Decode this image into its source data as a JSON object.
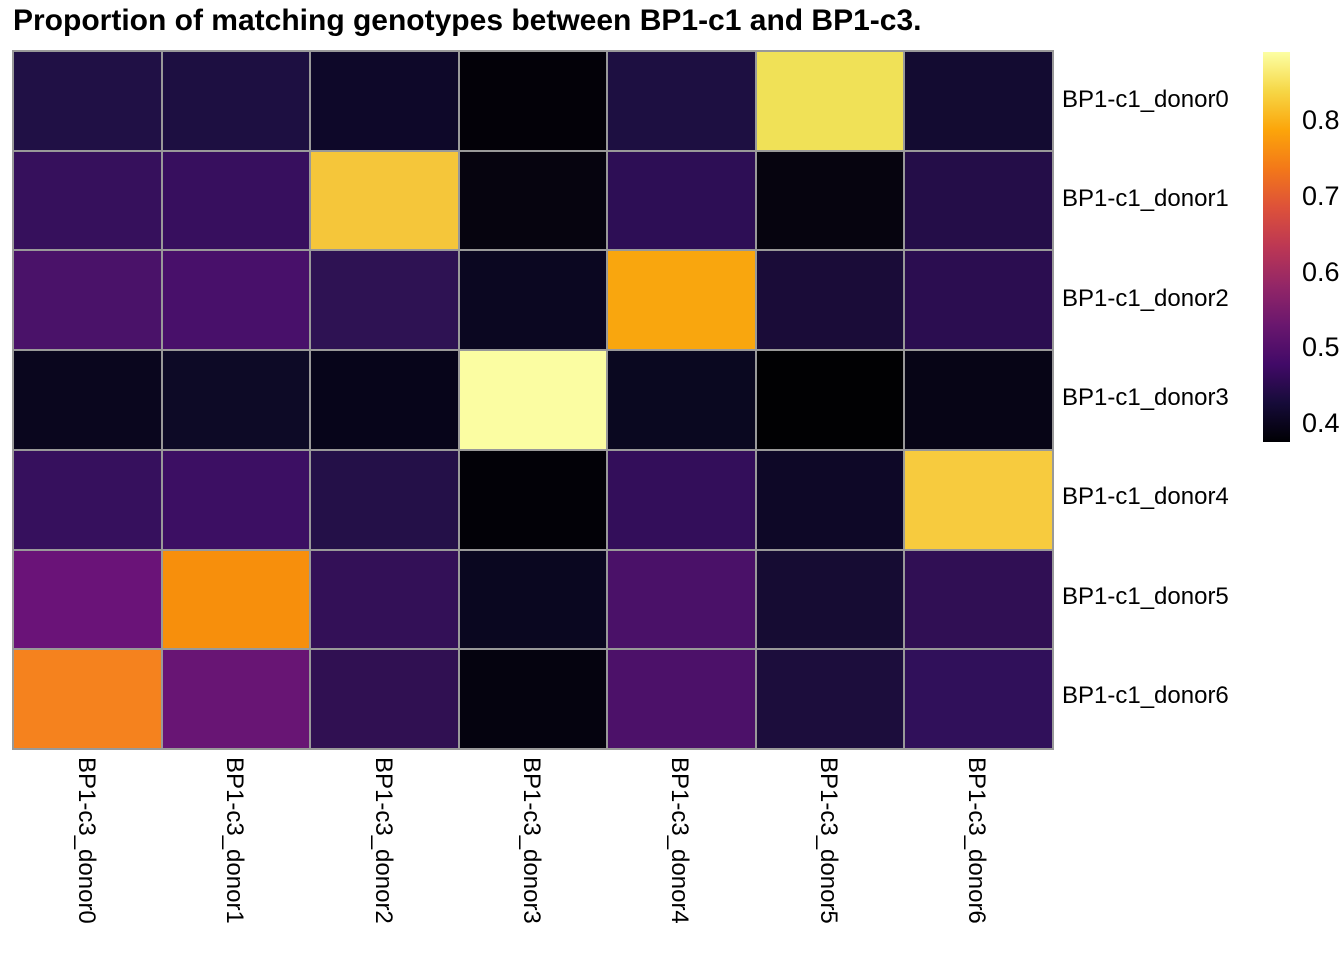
{
  "chart_data": {
    "type": "heatmap",
    "title": "Proportion of matching genotypes between BP1-c1 and BP1-c3.",
    "row_labels": [
      "BP1-c1_donor0",
      "BP1-c1_donor1",
      "BP1-c1_donor2",
      "BP1-c1_donor3",
      "BP1-c1_donor4",
      "BP1-c1_donor5",
      "BP1-c1_donor6"
    ],
    "col_labels": [
      "BP1-c3_donor0",
      "BP1-c3_donor1",
      "BP1-c3_donor2",
      "BP1-c3_donor3",
      "BP1-c3_donor4",
      "BP1-c3_donor5",
      "BP1-c3_donor6"
    ],
    "colormap": "inferno",
    "value_range": [
      0.375,
      0.89
    ],
    "grid_color": "#999999",
    "values": [
      [
        0.44,
        0.44,
        0.41,
        0.38,
        0.44,
        0.84,
        0.42
      ],
      [
        0.46,
        0.46,
        0.81,
        0.39,
        0.45,
        0.39,
        0.44
      ],
      [
        0.49,
        0.48,
        0.45,
        0.4,
        0.79,
        0.43,
        0.45
      ],
      [
        0.4,
        0.41,
        0.39,
        0.89,
        0.4,
        0.38,
        0.39
      ],
      [
        0.46,
        0.47,
        0.44,
        0.38,
        0.46,
        0.41,
        0.82
      ],
      [
        0.53,
        0.76,
        0.46,
        0.4,
        0.49,
        0.42,
        0.45
      ],
      [
        0.74,
        0.52,
        0.45,
        0.39,
        0.49,
        0.43,
        0.46
      ]
    ],
    "cell_colors": [
      [
        "#201045",
        "#1d0f41",
        "#0e0829",
        "#030108",
        "#1d0f41",
        "#f0e157",
        "#130b31"
      ],
      [
        "#36105c",
        "#370f5e",
        "#f5c63a",
        "#06040f",
        "#2d0e55",
        "#06040f",
        "#240d48"
      ],
      [
        "#4a1269",
        "#48106a",
        "#2e1253",
        "#0b0721",
        "#f9a60e",
        "#1a0c38",
        "#2b0d50"
      ],
      [
        "#0a061e",
        "#0d0a26",
        "#07051a",
        "#fbfda2",
        "#0a0820",
        "#010103",
        "#070516"
      ],
      [
        "#36105d",
        "#3c0f63",
        "#241048",
        "#020107",
        "#330e5a",
        "#0e0827",
        "#f7cb3e"
      ],
      [
        "#6a1378",
        "#f78f0c",
        "#331057",
        "#0a0720",
        "#4a1168",
        "#160c33",
        "#300f54"
      ],
      [
        "#f5821e",
        "#681574",
        "#301052",
        "#05030f",
        "#4c1169",
        "#1c0d3c",
        "#30105a"
      ]
    ],
    "colorbar": {
      "tick_labels": [
        "0.8",
        "0.7",
        "0.6",
        "0.5",
        "0.4"
      ],
      "tick_values": [
        0.8,
        0.7,
        0.6,
        0.5,
        0.4
      ],
      "gradient_stops_top_to_bottom": [
        "#fcffa4",
        "#f6d746",
        "#fca50a",
        "#f37819",
        "#dd513a",
        "#bc3754",
        "#932667",
        "#6a176e",
        "#420a68",
        "#160b39",
        "#000004"
      ]
    }
  }
}
